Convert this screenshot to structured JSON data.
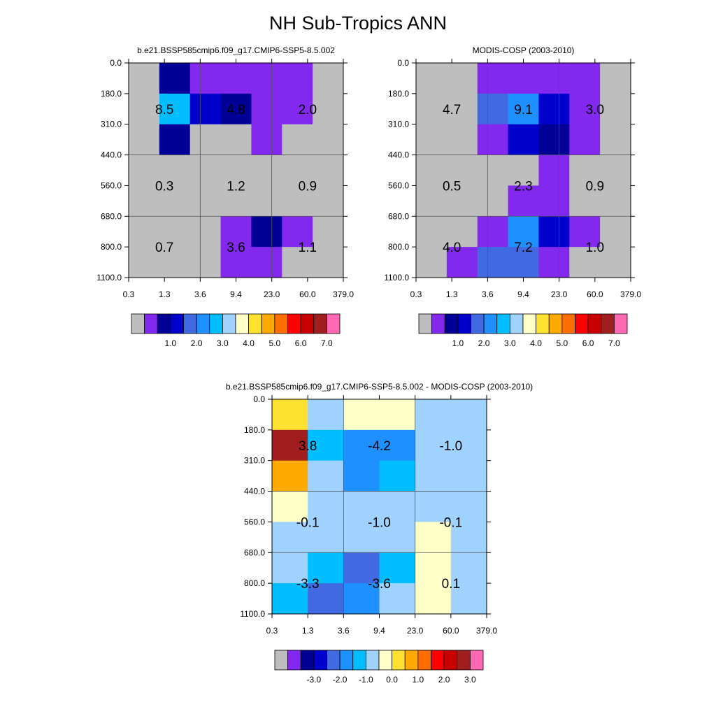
{
  "title": "NH Sub-Tropics ANN",
  "chart_data": [
    {
      "type": "heatmap",
      "title": "b.e21.BSSP585cmip6.f09_g17.CMIP6-SSP5-8.5.002",
      "x_ticks": [
        "0.3",
        "1.3",
        "3.6",
        "9.4",
        "23.0",
        "60.0",
        "379.0"
      ],
      "y_ticks": [
        "0.0",
        "180.0",
        "310.0",
        "440.0",
        "560.0",
        "680.0",
        "800.0",
        "1100.0"
      ],
      "cells": [
        [
          "#bebebe",
          "#000096",
          "#8228ef",
          "#8228ef",
          "#8228ef",
          "#8228ef",
          "#bebebe"
        ],
        [
          "#bebebe",
          "#00beff",
          "#0000cd",
          "#000096",
          "#8228ef",
          "#8228ef",
          "#bebebe"
        ],
        [
          "#bebebe",
          "#000096",
          "#bebebe",
          "#bebebe",
          "#8228ef",
          "#bebebe",
          "#bebebe"
        ],
        [
          "#bebebe",
          "#bebebe",
          "#bebebe",
          "#bebebe",
          "#bebebe",
          "#bebebe",
          "#bebebe"
        ],
        [
          "#bebebe",
          "#bebebe",
          "#bebebe",
          "#bebebe",
          "#bebebe",
          "#bebebe",
          "#bebebe"
        ],
        [
          "#bebebe",
          "#bebebe",
          "#bebebe",
          "#8228ef",
          "#000096",
          "#8228ef",
          "#bebebe"
        ],
        [
          "#bebebe",
          "#bebebe",
          "#bebebe",
          "#8228ef",
          "#8228ef",
          "#bebebe",
          "#bebebe"
        ]
      ],
      "value_labels": [
        [
          "8.5",
          "4.8",
          "2.0"
        ],
        [
          "0.3",
          "1.2",
          "0.9"
        ],
        [
          "0.7",
          "3.6",
          "1.1"
        ]
      ],
      "colorbar": {
        "colors": [
          "#bebebe",
          "#8228ef",
          "#000096",
          "#0000cd",
          "#4169e1",
          "#1e90ff",
          "#00beff",
          "#a0d2ff",
          "#ffffc8",
          "#ffe132",
          "#ffaa00",
          "#ff6e00",
          "#ff0000",
          "#c80000",
          "#a01e1e",
          "#ff69b4"
        ],
        "labels": [
          "1.0",
          "2.0",
          "3.0",
          "4.0",
          "5.0",
          "6.0",
          "7.0"
        ]
      }
    },
    {
      "type": "heatmap",
      "title": "MODIS-COSP (2003-2010)",
      "x_ticks": [
        "0.3",
        "1.3",
        "3.6",
        "9.4",
        "23.0",
        "60.0",
        "379.0"
      ],
      "y_ticks": [
        "0.0",
        "180.0",
        "310.0",
        "440.0",
        "560.0",
        "680.0",
        "800.0",
        "1100.0"
      ],
      "cells": [
        [
          "#bebebe",
          "#bebebe",
          "#8228ef",
          "#8228ef",
          "#8228ef",
          "#8228ef",
          "#bebebe"
        ],
        [
          "#bebebe",
          "#bebebe",
          "#4169e1",
          "#1e90ff",
          "#0000cd",
          "#8228ef",
          "#bebebe"
        ],
        [
          "#bebebe",
          "#bebebe",
          "#8228ef",
          "#0000cd",
          "#000096",
          "#8228ef",
          "#bebebe"
        ],
        [
          "#bebebe",
          "#bebebe",
          "#bebebe",
          "#bebebe",
          "#8228ef",
          "#bebebe",
          "#bebebe"
        ],
        [
          "#bebebe",
          "#bebebe",
          "#bebebe",
          "#8228ef",
          "#8228ef",
          "#bebebe",
          "#bebebe"
        ],
        [
          "#bebebe",
          "#bebebe",
          "#8228ef",
          "#1e90ff",
          "#0000cd",
          "#8228ef",
          "#bebebe"
        ],
        [
          "#bebebe",
          "#8228ef",
          "#4169e1",
          "#4169e1",
          "#8228ef",
          "#bebebe",
          "#bebebe"
        ]
      ],
      "value_labels": [
        [
          "4.7",
          "9.1",
          "3.0"
        ],
        [
          "0.5",
          "2.3",
          "0.9"
        ],
        [
          "4.0",
          "7.2",
          "1.0"
        ]
      ],
      "colorbar": {
        "colors": [
          "#bebebe",
          "#8228ef",
          "#000096",
          "#0000cd",
          "#4169e1",
          "#1e90ff",
          "#00beff",
          "#a0d2ff",
          "#ffffc8",
          "#ffe132",
          "#ffaa00",
          "#ff6e00",
          "#ff0000",
          "#c80000",
          "#a01e1e",
          "#ff69b4"
        ],
        "labels": [
          "1.0",
          "2.0",
          "3.0",
          "4.0",
          "5.0",
          "6.0",
          "7.0"
        ]
      }
    },
    {
      "type": "heatmap",
      "title": "b.e21.BSSP585cmip6.f09_g17.CMIP6-SSP5-8.5.002 - MODIS-COSP (2003-2010)",
      "x_ticks": [
        "0.3",
        "1.3",
        "3.6",
        "9.4",
        "23.0",
        "60.0",
        "379.0"
      ],
      "y_ticks": [
        "0.0",
        "180.0",
        "310.0",
        "440.0",
        "560.0",
        "680.0",
        "800.0",
        "1100.0"
      ],
      "cells": [
        [
          "#ffe132",
          "#a0d2ff",
          "#ffffc8",
          "#ffffc8",
          "#a0d2ff",
          "#a0d2ff"
        ],
        [
          "#a01e1e",
          "#00beff",
          "#1e90ff",
          "#1e90ff",
          "#a0d2ff",
          "#a0d2ff"
        ],
        [
          "#ffaa00",
          "#a0d2ff",
          "#1e90ff",
          "#00beff",
          "#a0d2ff",
          "#a0d2ff"
        ],
        [
          "#ffffc8",
          "#a0d2ff",
          "#a0d2ff",
          "#a0d2ff",
          "#a0d2ff",
          "#a0d2ff"
        ],
        [
          "#a0d2ff",
          "#a0d2ff",
          "#a0d2ff",
          "#a0d2ff",
          "#ffffc8",
          "#a0d2ff"
        ],
        [
          "#a0d2ff",
          "#00beff",
          "#4169e1",
          "#00beff",
          "#ffffc8",
          "#a0d2ff"
        ],
        [
          "#00beff",
          "#4169e1",
          "#1e90ff",
          "#a0d2ff",
          "#ffffc8",
          "#a0d2ff"
        ]
      ],
      "value_labels": [
        [
          "3.8",
          "-4.2",
          "-1.0"
        ],
        [
          "-0.1",
          "-1.0",
          "-0.1"
        ],
        [
          "-3.3",
          "-3.6",
          "0.1"
        ]
      ],
      "colorbar": {
        "colors": [
          "#bebebe",
          "#8228ef",
          "#000096",
          "#0000cd",
          "#4169e1",
          "#1e90ff",
          "#00beff",
          "#a0d2ff",
          "#ffffc8",
          "#ffe132",
          "#ffaa00",
          "#ff6e00",
          "#ff0000",
          "#c80000",
          "#a01e1e",
          "#ff69b4"
        ],
        "labels": [
          "-3.0",
          "-2.0",
          "-1.0",
          "0.0",
          "1.0",
          "2.0",
          "3.0"
        ]
      }
    }
  ]
}
